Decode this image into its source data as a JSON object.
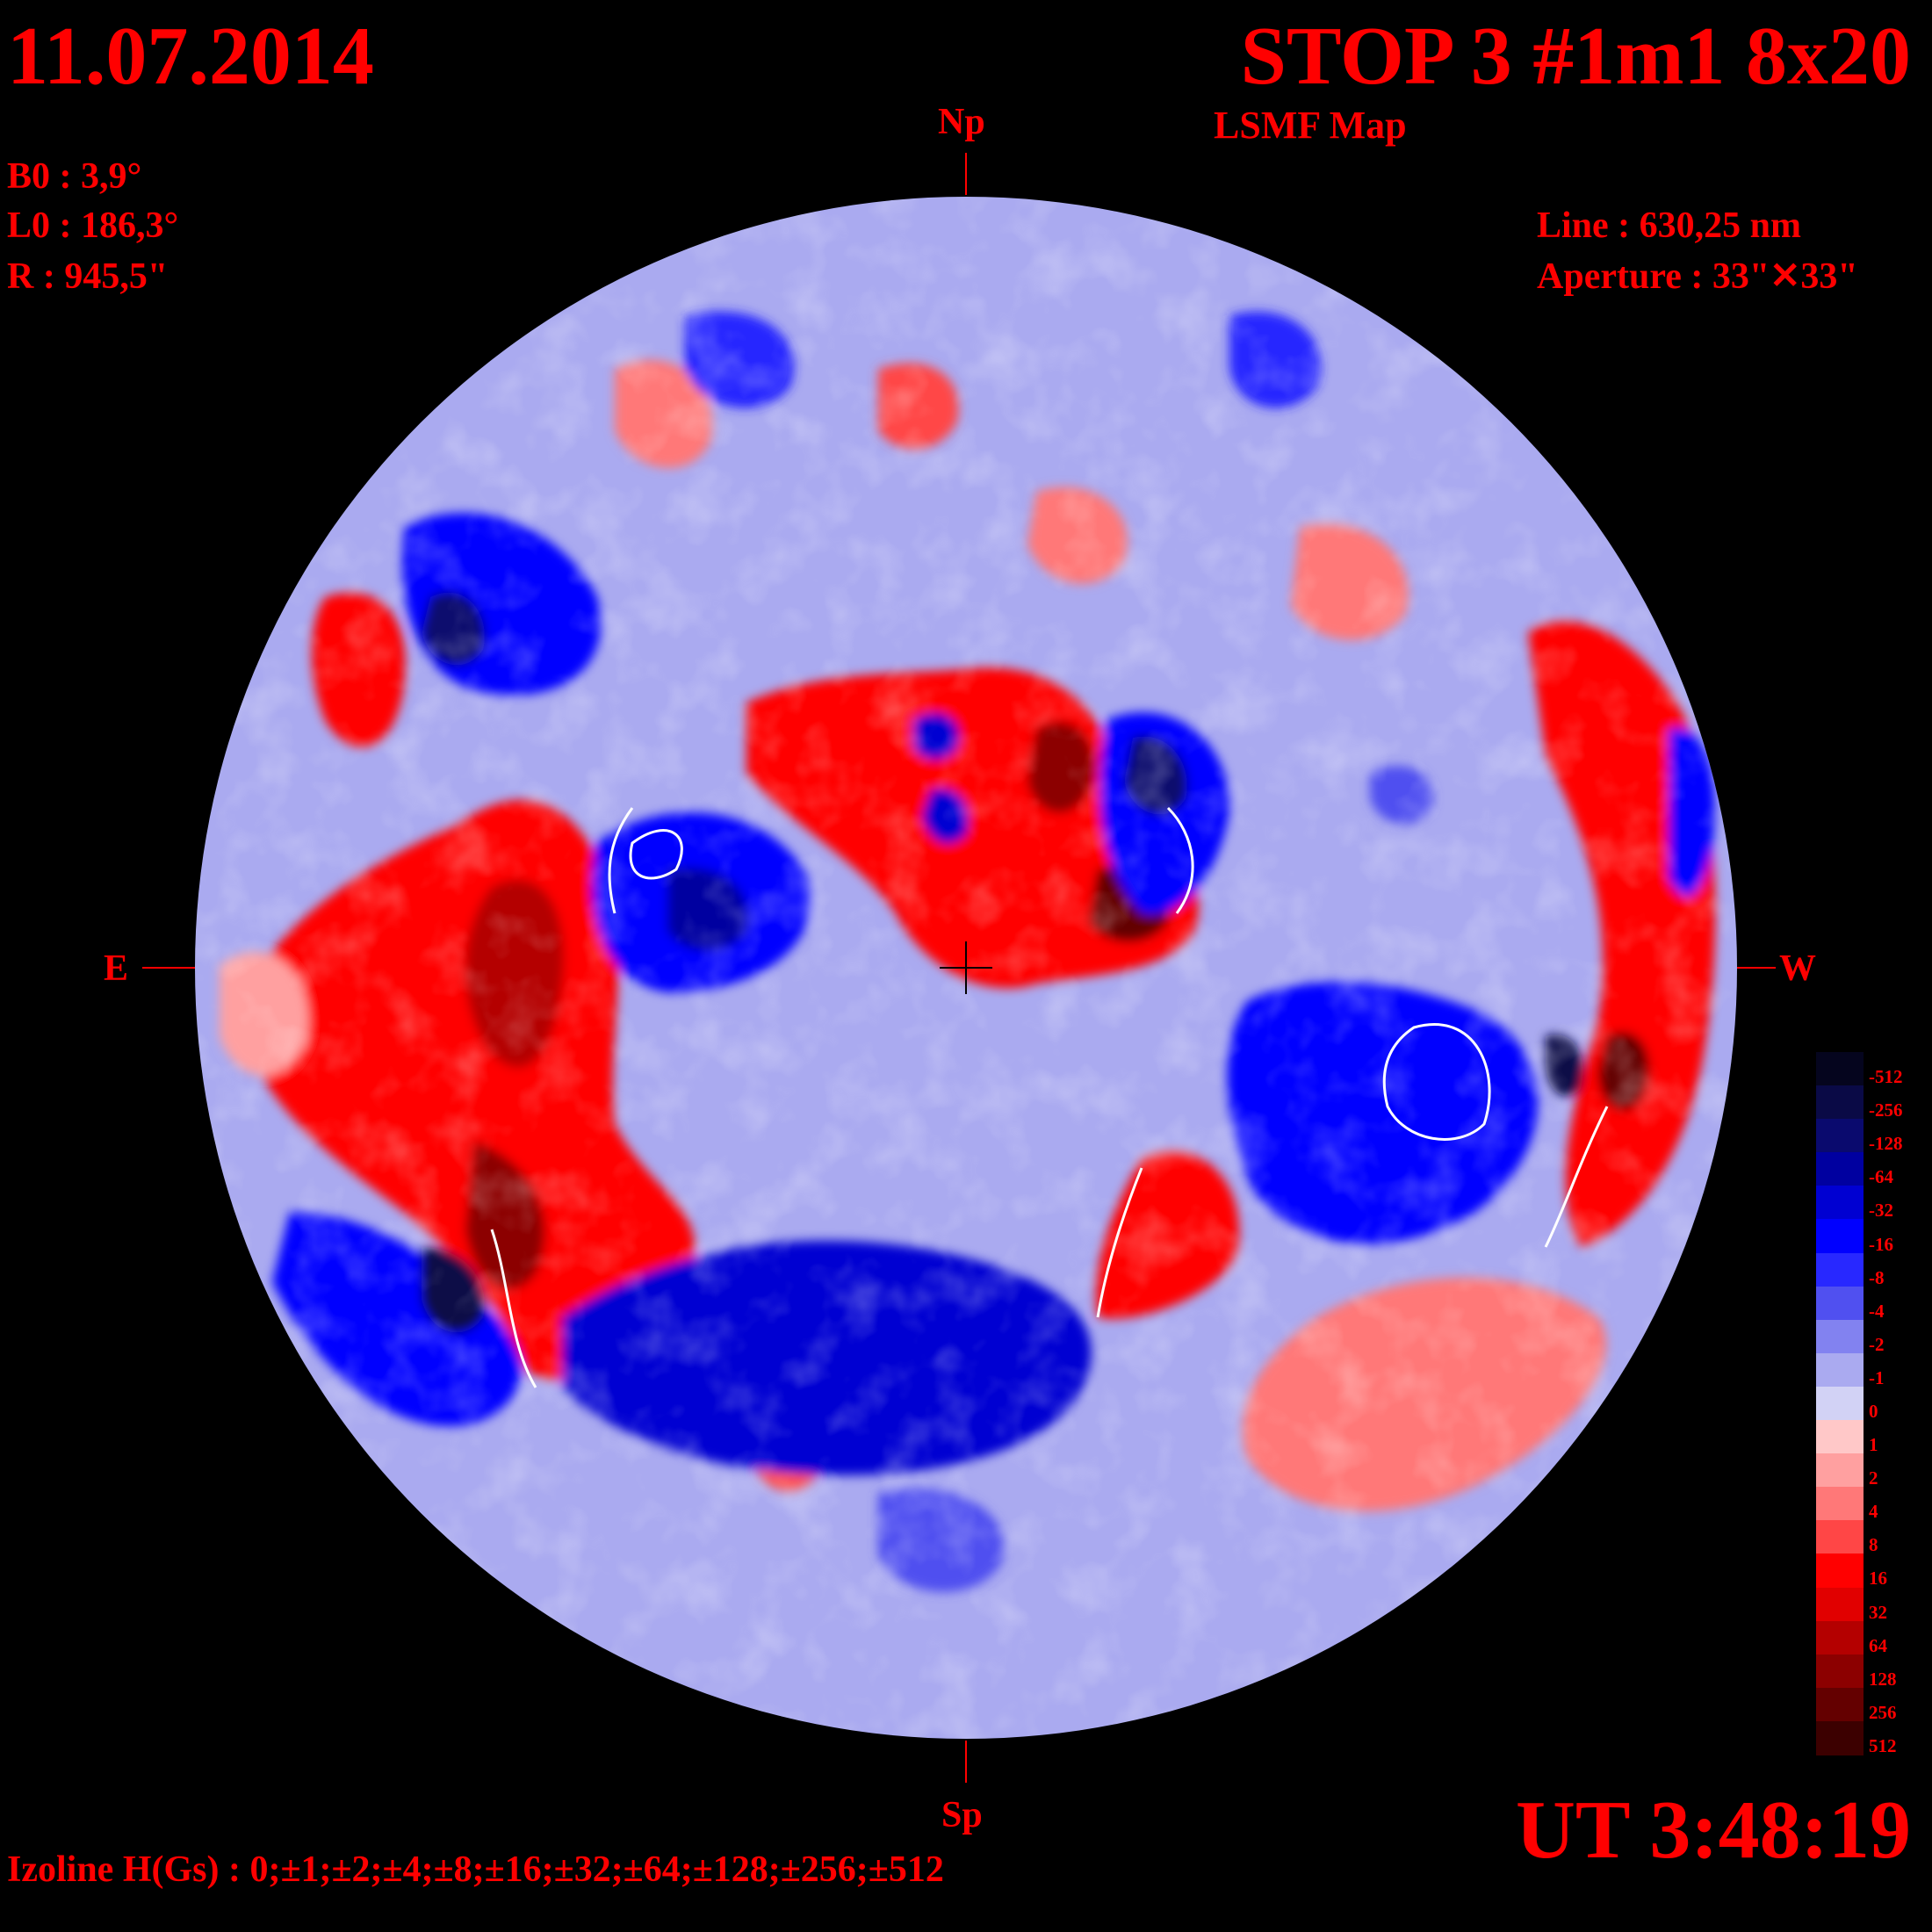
{
  "header": {
    "date": "11.07.2014",
    "title": "STOP 3 #1m1 8x20",
    "map_type": "LSMF  Map",
    "ut": "UT 3:48:19"
  },
  "params": {
    "b0": "B0 : 3,9°",
    "l0": "L0 : 186,3°",
    "r": "R  : 945,5\"",
    "line": "Line :  630,25 nm",
    "aperture": "Aperture : 33\"✕33\""
  },
  "directions": {
    "north": "Np",
    "south": "Sp",
    "east": "E",
    "west": "W"
  },
  "footer": {
    "izoline": "Izoline H(Gs) : 0;±1;±2;±4;±8;±16;±32;±64;±128;±256;±512"
  },
  "colorscale": {
    "labels": [
      "-512",
      "-256",
      "-128",
      "-64",
      "-32",
      "-16",
      "-8",
      "-4",
      "-2",
      "-1",
      "0",
      "1",
      "2",
      "4",
      "8",
      "16",
      "32",
      "64",
      "128",
      "256",
      "512"
    ],
    "colors": [
      "#05051e",
      "#0a0a46",
      "#0a0a6e",
      "#0000a0",
      "#0000d2",
      "#0000ff",
      "#2828ff",
      "#5050f0",
      "#8282f0",
      "#aaaaf0",
      "#d2d2f5",
      "#ffc8c8",
      "#ffa0a0",
      "#ff7878",
      "#ff4646",
      "#ff0000",
      "#e10000",
      "#b40000",
      "#8c0000",
      "#640000",
      "#3c0000"
    ]
  },
  "colors": {
    "negative": "#0000ff",
    "positive": "#ff0000",
    "text": "#ff0000",
    "background": "#000000"
  }
}
